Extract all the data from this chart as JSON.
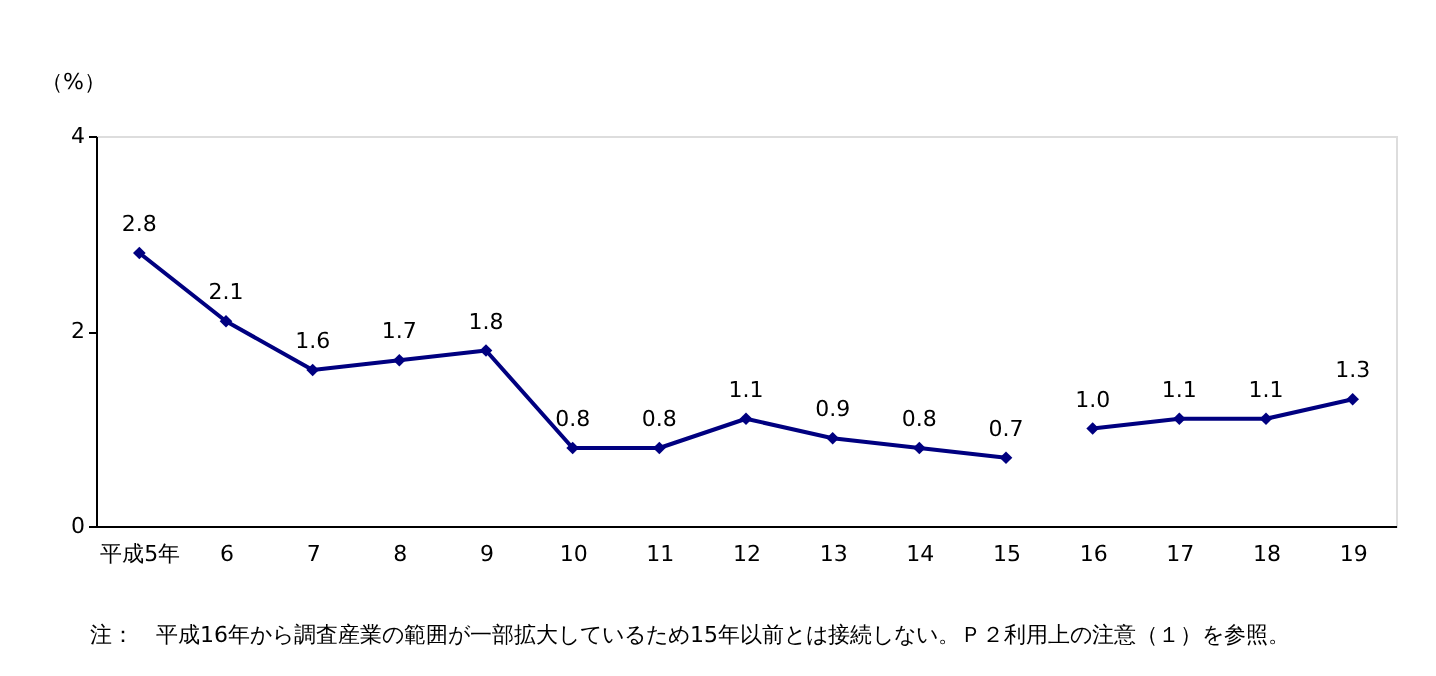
{
  "chart_data": {
    "type": "line",
    "ylabel": "（%）",
    "categories": [
      "平成5年",
      "6",
      "7",
      "8",
      "9",
      "10",
      "11",
      "12",
      "13",
      "14",
      "15",
      "16",
      "17",
      "18",
      "19"
    ],
    "series": [
      {
        "color": "#000080",
        "values": [
          2.8,
          2.1,
          1.6,
          1.7,
          1.8,
          0.8,
          0.8,
          1.1,
          0.9,
          0.8,
          0.7,
          null,
          null,
          null,
          null
        ],
        "value_labels": [
          "2.8",
          "2.1",
          "1.6",
          "1.7",
          "1.8",
          "0.8",
          "0.8",
          "1.1",
          "0.9",
          "0.8",
          "0.7",
          null,
          null,
          null,
          null
        ]
      },
      {
        "color": "#000080",
        "values": [
          null,
          null,
          null,
          null,
          null,
          null,
          null,
          null,
          null,
          null,
          null,
          1.0,
          1.1,
          1.1,
          1.3
        ],
        "value_labels": [
          null,
          null,
          null,
          null,
          null,
          null,
          null,
          null,
          null,
          null,
          null,
          "1.0",
          "1.1",
          "1.1",
          "1.3"
        ]
      }
    ],
    "ylim": [
      0,
      4
    ],
    "yticks": [
      0,
      2,
      4
    ],
    "grid": false,
    "legend": false,
    "marker": "diamond",
    "line_style": "solid",
    "annotations": [
      "注：　平成16年から調査産業の範囲が一部拡大しているため15年以前とは接続しない。Ｐ２利用上の注意（１）を参照。"
    ]
  }
}
